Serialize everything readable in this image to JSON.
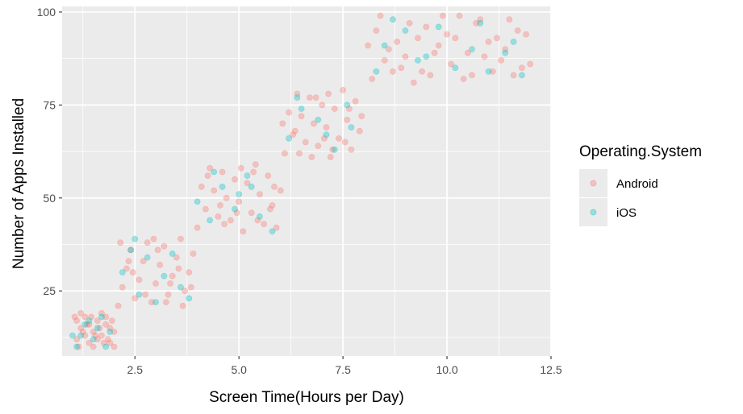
{
  "chart_data": {
    "type": "scatter",
    "title": "",
    "xlabel": "Screen Time(Hours per Day)",
    "ylabel": "Number of Apps Installed",
    "xlim": [
      0.75,
      12.5
    ],
    "ylim": [
      7.5,
      101.5
    ],
    "x_ticks": [
      2.5,
      5.0,
      7.5,
      10.0,
      12.5
    ],
    "x_tick_labels": [
      "2.5",
      "5.0",
      "7.5",
      "10.0",
      "12.5"
    ],
    "y_ticks": [
      25,
      50,
      75,
      100
    ],
    "y_tick_labels": [
      "25",
      "50",
      "75",
      "100"
    ],
    "grid": true,
    "legend_placement": "right",
    "legend_title": "Operating.System",
    "series": [
      {
        "name": "Android",
        "color": "#F8766D",
        "points": [
          [
            1.1,
            12
          ],
          [
            1.2,
            15
          ],
          [
            1.3,
            18
          ],
          [
            1.4,
            11
          ],
          [
            1.5,
            14
          ],
          [
            1.6,
            17
          ],
          [
            1.7,
            13
          ],
          [
            1.8,
            16
          ],
          [
            1.9,
            11
          ],
          [
            2.0,
            14
          ],
          [
            1.2,
            19
          ],
          [
            1.4,
            16
          ],
          [
            1.6,
            12
          ],
          [
            1.8,
            18
          ],
          [
            1.3,
            13
          ],
          [
            1.5,
            10
          ],
          [
            1.7,
            19
          ],
          [
            1.9,
            15
          ],
          [
            1.1,
            17
          ],
          [
            2.0,
            10
          ],
          [
            1.25,
            14
          ],
          [
            1.45,
            18
          ],
          [
            1.65,
            15
          ],
          [
            1.85,
            12
          ],
          [
            1.35,
            16
          ],
          [
            1.55,
            13
          ],
          [
            1.75,
            11
          ],
          [
            1.95,
            17
          ],
          [
            1.15,
            10
          ],
          [
            1.05,
            18
          ],
          [
            2.1,
            21
          ],
          [
            2.2,
            26
          ],
          [
            2.3,
            31
          ],
          [
            2.4,
            36
          ],
          [
            2.5,
            23
          ],
          [
            2.6,
            28
          ],
          [
            2.7,
            33
          ],
          [
            2.8,
            38
          ],
          [
            2.9,
            22
          ],
          [
            3.0,
            27
          ],
          [
            3.1,
            32
          ],
          [
            3.2,
            37
          ],
          [
            3.3,
            24
          ],
          [
            3.4,
            29
          ],
          [
            3.5,
            34
          ],
          [
            3.6,
            39
          ],
          [
            3.7,
            25
          ],
          [
            3.8,
            30
          ],
          [
            3.9,
            35
          ],
          [
            2.15,
            38
          ],
          [
            2.45,
            30
          ],
          [
            2.75,
            24
          ],
          [
            3.05,
            36
          ],
          [
            3.35,
            27
          ],
          [
            3.65,
            21
          ],
          [
            2.35,
            33
          ],
          [
            2.95,
            39
          ],
          [
            3.25,
            22
          ],
          [
            3.55,
            31
          ],
          [
            3.85,
            26
          ],
          [
            4.0,
            42
          ],
          [
            4.2,
            47
          ],
          [
            4.4,
            52
          ],
          [
            4.6,
            57
          ],
          [
            4.8,
            44
          ],
          [
            5.0,
            49
          ],
          [
            5.2,
            54
          ],
          [
            5.4,
            59
          ],
          [
            5.6,
            43
          ],
          [
            5.8,
            48
          ],
          [
            4.1,
            53
          ],
          [
            4.3,
            58
          ],
          [
            4.5,
            45
          ],
          [
            4.7,
            50
          ],
          [
            4.9,
            55
          ],
          [
            5.1,
            41
          ],
          [
            5.3,
            46
          ],
          [
            5.5,
            51
          ],
          [
            5.7,
            56
          ],
          [
            5.9,
            42
          ],
          [
            4.25,
            56
          ],
          [
            4.65,
            43
          ],
          [
            5.05,
            58
          ],
          [
            5.45,
            44
          ],
          [
            5.85,
            53
          ],
          [
            4.55,
            48
          ],
          [
            4.95,
            46
          ],
          [
            5.35,
            57
          ],
          [
            5.75,
            47
          ],
          [
            6.0,
            52
          ],
          [
            6.1,
            62
          ],
          [
            6.3,
            67
          ],
          [
            6.5,
            72
          ],
          [
            6.7,
            77
          ],
          [
            6.9,
            64
          ],
          [
            7.1,
            69
          ],
          [
            7.3,
            74
          ],
          [
            7.5,
            79
          ],
          [
            7.7,
            63
          ],
          [
            7.9,
            68
          ],
          [
            6.2,
            73
          ],
          [
            6.4,
            78
          ],
          [
            6.6,
            65
          ],
          [
            6.8,
            70
          ],
          [
            7.0,
            75
          ],
          [
            7.2,
            61
          ],
          [
            7.4,
            66
          ],
          [
            7.6,
            71
          ],
          [
            7.8,
            76
          ],
          [
            6.05,
            70
          ],
          [
            6.45,
            62
          ],
          [
            6.85,
            77
          ],
          [
            7.25,
            63
          ],
          [
            7.65,
            74
          ],
          [
            6.35,
            68
          ],
          [
            6.75,
            61
          ],
          [
            7.15,
            78
          ],
          [
            7.55,
            65
          ],
          [
            7.95,
            72
          ],
          [
            7.05,
            66
          ],
          [
            8.2,
            82
          ],
          [
            8.5,
            87
          ],
          [
            8.8,
            92
          ],
          [
            9.1,
            97
          ],
          [
            9.4,
            84
          ],
          [
            9.7,
            89
          ],
          [
            10.0,
            94
          ],
          [
            10.3,
            99
          ],
          [
            10.6,
            83
          ],
          [
            10.9,
            88
          ],
          [
            11.2,
            93
          ],
          [
            11.5,
            98
          ],
          [
            11.8,
            85
          ],
          [
            8.3,
            95
          ],
          [
            8.6,
            90
          ],
          [
            8.9,
            85
          ],
          [
            9.2,
            81
          ],
          [
            9.5,
            96
          ],
          [
            9.8,
            91
          ],
          [
            10.1,
            86
          ],
          [
            10.4,
            82
          ],
          [
            10.7,
            97
          ],
          [
            11.0,
            92
          ],
          [
            11.3,
            87
          ],
          [
            11.6,
            83
          ],
          [
            11.9,
            94
          ],
          [
            8.4,
            99
          ],
          [
            9.0,
            88
          ],
          [
            9.6,
            83
          ],
          [
            10.2,
            93
          ],
          [
            10.8,
            98
          ],
          [
            11.4,
            90
          ],
          [
            12.0,
            86
          ],
          [
            8.7,
            84
          ],
          [
            9.3,
            93
          ],
          [
            9.9,
            99
          ],
          [
            10.5,
            89
          ],
          [
            11.1,
            84
          ],
          [
            11.7,
            95
          ],
          [
            8.1,
            91
          ]
        ]
      },
      {
        "name": "iOS",
        "color": "#00BFC4",
        "points": [
          [
            1.1,
            10
          ],
          [
            1.3,
            16
          ],
          [
            1.5,
            12
          ],
          [
            1.7,
            18
          ],
          [
            1.9,
            14
          ],
          [
            1.2,
            13
          ],
          [
            1.6,
            15
          ],
          [
            1.8,
            10
          ],
          [
            1.0,
            13
          ],
          [
            1.4,
            17
          ],
          [
            2.2,
            30
          ],
          [
            2.4,
            36
          ],
          [
            2.6,
            24
          ],
          [
            2.8,
            34
          ],
          [
            3.0,
            22
          ],
          [
            3.2,
            29
          ],
          [
            3.4,
            35
          ],
          [
            3.6,
            26
          ],
          [
            3.8,
            23
          ],
          [
            2.5,
            39
          ],
          [
            4.0,
            49
          ],
          [
            4.3,
            44
          ],
          [
            4.6,
            53
          ],
          [
            4.9,
            47
          ],
          [
            5.2,
            56
          ],
          [
            5.5,
            45
          ],
          [
            5.8,
            41
          ],
          [
            4.4,
            57
          ],
          [
            5.0,
            51
          ],
          [
            5.3,
            53
          ],
          [
            6.2,
            66
          ],
          [
            6.5,
            74
          ],
          [
            6.9,
            71
          ],
          [
            7.3,
            63
          ],
          [
            7.7,
            69
          ],
          [
            6.4,
            77
          ],
          [
            7.1,
            67
          ],
          [
            7.6,
            75
          ],
          [
            8.3,
            84
          ],
          [
            8.5,
            91
          ],
          [
            9.0,
            95
          ],
          [
            9.5,
            88
          ],
          [
            9.8,
            96
          ],
          [
            10.2,
            85
          ],
          [
            10.6,
            90
          ],
          [
            11.0,
            84
          ],
          [
            11.4,
            89
          ],
          [
            11.8,
            83
          ],
          [
            9.3,
            87
          ],
          [
            10.8,
            97
          ],
          [
            11.6,
            92
          ],
          [
            8.7,
            98
          ]
        ]
      }
    ]
  }
}
